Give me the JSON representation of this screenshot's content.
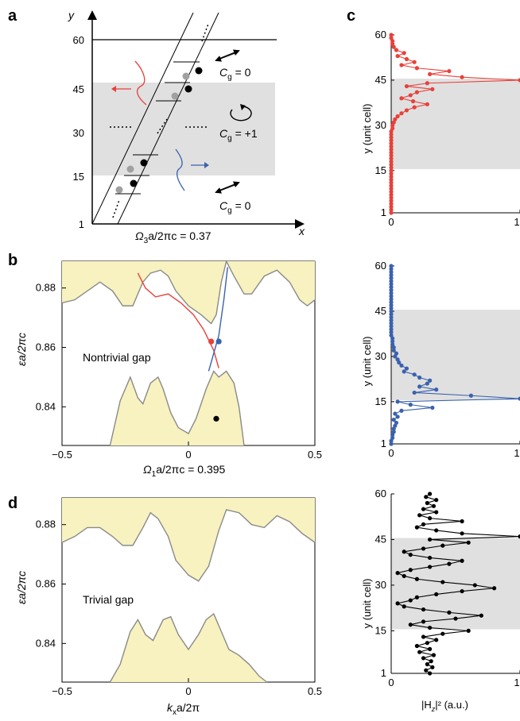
{
  "panel_letters": {
    "a": "a",
    "b": "b",
    "c": "c",
    "d": "d"
  },
  "panel_a": {
    "yticks": [
      "60",
      "45",
      "30",
      "15",
      "1"
    ],
    "y_axis_label": "y",
    "x_axis_label": "x",
    "caption_main": "Ω",
    "caption_sub": "3",
    "caption_rest": "a/2πc = 0.37",
    "cg_label_main": "C",
    "cg_label_sub": "g",
    "cg_top": " = 0",
    "cg_mid": " = +1",
    "cg_bottom": " = 0",
    "colors": {
      "gray_band": "#e0e0e0",
      "red": "#e8413a",
      "blue": "#3a62ae"
    }
  },
  "panel_b": {
    "yticks": [
      "0.88",
      "0.86",
      "0.84"
    ],
    "xticks": [
      "−0.5",
      "0",
      "0.5"
    ],
    "ylabel": "εa/2πc",
    "gap_label": "Nontrivial gap",
    "caption_main": "Ω",
    "caption_sub": "1",
    "caption_rest": "a/2πc = 0.395"
  },
  "panel_d": {
    "yticks": [
      "0.88",
      "0.86",
      "0.84"
    ],
    "xticks": [
      "−0.5",
      "0",
      "0.5"
    ],
    "ylabel": "εa/2πc",
    "gap_label": "Trivial gap",
    "xlabel_main": "k",
    "xlabel_sub": "x",
    "xlabel_rest": "a/2π"
  },
  "panel_c": {
    "yticks": [
      "60",
      "45",
      "30",
      "15",
      "1"
    ],
    "xticks": [
      "0",
      "1"
    ],
    "ylabel": "y (unit cell)",
    "xlabel_main": "|H",
    "xlabel_sub": "z",
    "xlabel_rest": "|² (a.u.)"
  },
  "chart_data": [
    {
      "type": "line",
      "title": "",
      "xlabel": "|Hz|² (a.u.)",
      "ylabel": "y (unit cell)",
      "xlim": [
        0,
        1
      ],
      "ylim": [
        1,
        60
      ],
      "shaded_y_range": [
        15.5,
        45.5
      ],
      "color": "#e8413a",
      "x": [
        0,
        0,
        0,
        0,
        0,
        0,
        0,
        0,
        0,
        0,
        0,
        0,
        0,
        0,
        0,
        0,
        0,
        0,
        0,
        0,
        0,
        0,
        0,
        0,
        0,
        0,
        0,
        0,
        0.01,
        0.01,
        0.02,
        0.03,
        0.05,
        0.08,
        0.12,
        0.18,
        0.28,
        0.17,
        0.08,
        0.15,
        0.2,
        0.32,
        0.12,
        0.28,
        1.0,
        0.55,
        0.3,
        0.45,
        0.2,
        0.08,
        0.18,
        0.12,
        0.05,
        0.1,
        0.04,
        0.02,
        0.01,
        0.01,
        0,
        0
      ],
      "y": [
        1,
        2,
        3,
        4,
        5,
        6,
        7,
        8,
        9,
        10,
        11,
        12,
        13,
        14,
        15,
        16,
        17,
        18,
        19,
        20,
        21,
        22,
        23,
        24,
        25,
        26,
        27,
        28,
        29,
        30,
        31,
        32,
        33,
        34,
        35,
        36,
        37,
        38,
        39,
        40,
        41,
        42,
        43,
        44,
        45,
        46,
        47,
        48,
        49,
        50,
        51,
        52,
        53,
        54,
        55,
        56,
        57,
        58,
        59,
        60
      ]
    },
    {
      "type": "line",
      "title": "",
      "xlabel": "|Hz|² (a.u.)",
      "ylabel": "y (unit cell)",
      "xlim": [
        0,
        1
      ],
      "ylim": [
        1,
        60
      ],
      "shaded_y_range": [
        15.5,
        45.5
      ],
      "color": "#3a62ae",
      "x": [
        0,
        0,
        0.01,
        0.01,
        0.02,
        0.02,
        0.03,
        0.04,
        0.02,
        0.05,
        0.03,
        0.08,
        0.32,
        0.15,
        0.05,
        1.0,
        0.62,
        0.18,
        0.35,
        0.22,
        0.28,
        0.3,
        0.22,
        0.18,
        0.1,
        0.12,
        0.08,
        0.06,
        0.05,
        0.03,
        0.04,
        0.02,
        0.02,
        0.01,
        0.01,
        0.01,
        0,
        0,
        0,
        0,
        0,
        0,
        0,
        0,
        0,
        0,
        0,
        0,
        0,
        0,
        0,
        0,
        0,
        0,
        0,
        0,
        0,
        0,
        0,
        0
      ],
      "y": [
        1,
        2,
        3,
        4,
        5,
        6,
        7,
        8,
        9,
        10,
        11,
        12,
        13,
        14,
        15,
        16,
        17,
        18,
        19,
        20,
        21,
        22,
        23,
        24,
        25,
        26,
        27,
        28,
        29,
        30,
        31,
        32,
        33,
        34,
        35,
        36,
        37,
        38,
        39,
        40,
        41,
        42,
        43,
        44,
        45,
        46,
        47,
        48,
        49,
        50,
        51,
        52,
        53,
        54,
        55,
        56,
        57,
        58,
        59,
        60
      ]
    },
    {
      "type": "line",
      "title": "",
      "xlabel": "|Hz|² (a.u.)",
      "ylabel": "y (unit cell)",
      "xlim": [
        0,
        1
      ],
      "ylim": [
        1,
        60
      ],
      "shaded_y_range": [
        15.5,
        45.5
      ],
      "color": "#000000",
      "x": [
        0.3,
        0.27,
        0.32,
        0.28,
        0.31,
        0.25,
        0.33,
        0.22,
        0.3,
        0.2,
        0.28,
        0.35,
        0.25,
        0.4,
        0.6,
        0.3,
        0.15,
        0.25,
        0.5,
        0.7,
        0.45,
        0.25,
        0.1,
        0.05,
        0.15,
        0.2,
        0.35,
        0.55,
        0.8,
        0.65,
        0.4,
        0.2,
        0.1,
        0.05,
        0.15,
        0.3,
        0.45,
        0.55,
        0.3,
        0.15,
        0.1,
        0.25,
        0.4,
        0.6,
        0.3,
        1.0,
        0.55,
        0.35,
        0.2,
        0.25,
        0.55,
        0.3,
        0.22,
        0.35,
        0.25,
        0.33,
        0.28,
        0.35,
        0.27,
        0.3
      ],
      "y": [
        1,
        2,
        3,
        4,
        5,
        6,
        7,
        8,
        9,
        10,
        11,
        12,
        13,
        14,
        15,
        16,
        17,
        18,
        19,
        20,
        21,
        22,
        23,
        24,
        25,
        26,
        27,
        28,
        29,
        30,
        31,
        32,
        33,
        34,
        35,
        36,
        37,
        38,
        39,
        40,
        41,
        42,
        43,
        44,
        45,
        46,
        47,
        48,
        49,
        50,
        51,
        52,
        53,
        54,
        55,
        56,
        57,
        58,
        59,
        60
      ]
    },
    {
      "type": "area",
      "title": "",
      "xlabel": "Ω1a/2πc = 0.395",
      "ylabel": "εa/2πc",
      "xlim": [
        -0.5,
        0.5
      ],
      "ylim": [
        0.827,
        0.889
      ],
      "annotation": "Nontrivial gap",
      "band_color": "#f7f2bf",
      "upper_band_edge": {
        "x": [
          -0.5,
          -0.45,
          -0.4,
          -0.35,
          -0.3,
          -0.26,
          -0.22,
          -0.18,
          -0.15,
          -0.11,
          -0.08,
          -0.05,
          0,
          0.05,
          0.09,
          0.11,
          0.13,
          0.15,
          0.18,
          0.22,
          0.25,
          0.3,
          0.35,
          0.4,
          0.44,
          0.47,
          0.5
        ],
        "y": [
          0.875,
          0.876,
          0.879,
          0.882,
          0.879,
          0.874,
          0.874,
          0.882,
          0.885,
          0.886,
          0.884,
          0.879,
          0.874,
          0.871,
          0.868,
          0.871,
          0.882,
          0.889,
          0.884,
          0.878,
          0.878,
          0.884,
          0.886,
          0.882,
          0.876,
          0.874,
          0.876
        ]
      },
      "lower_band_edge": {
        "x": [
          -0.31,
          -0.27,
          -0.23,
          -0.2,
          -0.18,
          -0.15,
          -0.12,
          -0.1,
          -0.07,
          -0.04,
          0,
          0.03,
          0.07,
          0.1,
          0.12,
          0.15,
          0.18,
          0.2,
          0.22
        ],
        "y": [
          0.827,
          0.842,
          0.85,
          0.843,
          0.841,
          0.848,
          0.85,
          0.846,
          0.838,
          0.833,
          0.831,
          0.836,
          0.846,
          0.852,
          0.85,
          0.852,
          0.848,
          0.84,
          0.827
        ]
      },
      "edge_states": [
        {
          "name": "",
          "color": "#e8413a",
          "x": [
            -0.2,
            -0.17,
            -0.13,
            -0.08,
            -0.03,
            0.02,
            0.06,
            0.1,
            0.12
          ],
          "y": [
            0.885,
            0.88,
            0.877,
            0.878,
            0.875,
            0.871,
            0.866,
            0.859,
            0.853
          ]
        },
        {
          "name": "",
          "color": "#3a62ae",
          "x": [
            0.08,
            0.1,
            0.12,
            0.14,
            0.155
          ],
          "y": [
            0.852,
            0.858,
            0.864,
            0.876,
            0.887
          ]
        }
      ],
      "markers": [
        {
          "x": 0.09,
          "y": 0.862,
          "color": "#e8413a"
        },
        {
          "x": 0.12,
          "y": 0.862,
          "color": "#3a62ae"
        },
        {
          "x": 0.11,
          "y": 0.836,
          "color": "#000000"
        }
      ]
    },
    {
      "type": "area",
      "title": "",
      "xlabel": "kxa/2π",
      "ylabel": "εa/2πc",
      "xlim": [
        -0.5,
        0.5
      ],
      "ylim": [
        0.827,
        0.889
      ],
      "annotation": "Trivial gap",
      "band_color": "#f7f2bf",
      "upper_band_edge": {
        "x": [
          -0.5,
          -0.45,
          -0.4,
          -0.35,
          -0.3,
          -0.26,
          -0.22,
          -0.18,
          -0.15,
          -0.12,
          -0.08,
          -0.05,
          0,
          0.04,
          0.08,
          0.12,
          0.15,
          0.2,
          0.25,
          0.3,
          0.35,
          0.4,
          0.45,
          0.5
        ],
        "y": [
          0.874,
          0.876,
          0.879,
          0.879,
          0.876,
          0.873,
          0.873,
          0.879,
          0.884,
          0.882,
          0.876,
          0.868,
          0.863,
          0.861,
          0.866,
          0.878,
          0.885,
          0.884,
          0.88,
          0.879,
          0.883,
          0.881,
          0.877,
          0.874
        ]
      },
      "lower_band_edge": {
        "x": [
          -0.31,
          -0.27,
          -0.23,
          -0.2,
          -0.17,
          -0.14,
          -0.1,
          -0.07,
          -0.04,
          0,
          0.04,
          0.07,
          0.1,
          0.13,
          0.16,
          0.2,
          0.24,
          0.28,
          0.31
        ],
        "y": [
          0.827,
          0.833,
          0.844,
          0.848,
          0.843,
          0.841,
          0.848,
          0.849,
          0.843,
          0.838,
          0.843,
          0.848,
          0.85,
          0.844,
          0.838,
          0.836,
          0.833,
          0.829,
          0.827
        ]
      }
    }
  ]
}
